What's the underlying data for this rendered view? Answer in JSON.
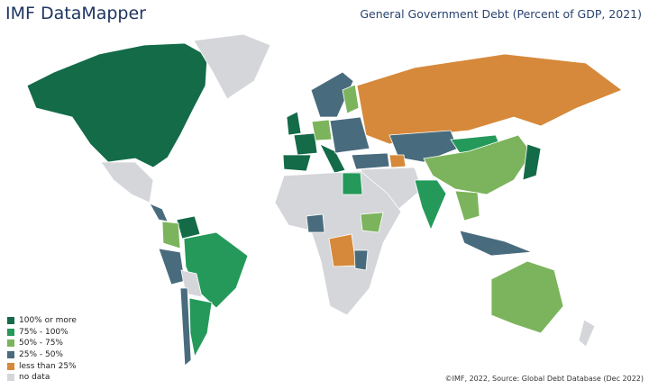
{
  "header": {
    "title": "IMF DataMapper",
    "subtitle": "General Government Debt (Percent of GDP, 2021)"
  },
  "legend": [
    {
      "label": "100% or more",
      "color": "#136b48"
    },
    {
      "label": "75% - 100%",
      "color": "#24995a"
    },
    {
      "label": "50% - 75%",
      "color": "#7bb45c"
    },
    {
      "label": "25% - 50%",
      "color": "#496b7e"
    },
    {
      "label": "less than 25%",
      "color": "#d6893a"
    },
    {
      "label": "no data",
      "color": "#d5d6d9"
    }
  ],
  "source": "©IMF, 2022, Source: Global Debt Database (Dec 2022)"
}
